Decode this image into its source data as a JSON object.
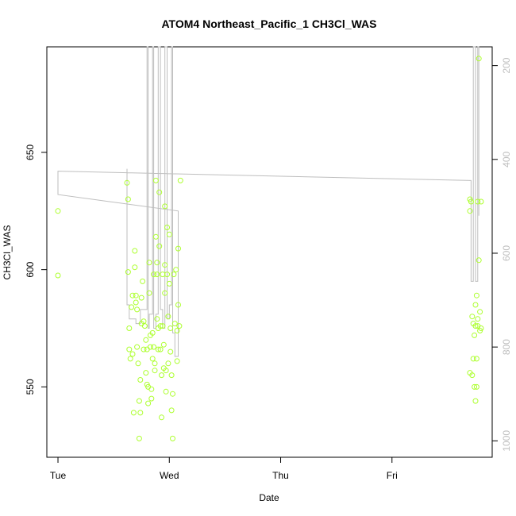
{
  "chart_data": {
    "type": "scatter",
    "title": "ATOM4 Northeast_Pacific_1 CH3Cl_WAS",
    "xlabel": "Date",
    "ylabel": "CH3Cl_WAS",
    "x_ticks": [
      "Tue",
      "Wed",
      "Thu",
      "Fri"
    ],
    "xlim": [
      -0.1,
      3.9
    ],
    "ylim": [
      520,
      695
    ],
    "y_ticks": [
      550,
      600,
      650
    ],
    "y2_ticks": [
      200,
      400,
      600,
      800,
      1000
    ],
    "y2lim": [
      1035,
      160
    ],
    "point_color": "#adff2f",
    "line_color": "#bebebe",
    "grid": false,
    "points": [
      [
        0.0,
        625
      ],
      [
        0.0,
        597.5
      ],
      [
        0.62,
        637
      ],
      [
        0.63,
        630
      ],
      [
        0.63,
        599
      ],
      [
        0.64,
        575
      ],
      [
        0.64,
        566
      ],
      [
        0.65,
        562
      ],
      [
        0.66,
        584
      ],
      [
        0.67,
        589
      ],
      [
        0.67,
        564
      ],
      [
        0.68,
        539
      ],
      [
        0.69,
        608
      ],
      [
        0.69,
        601
      ],
      [
        0.7,
        589
      ],
      [
        0.7,
        586
      ],
      [
        0.71,
        583
      ],
      [
        0.71,
        567
      ],
      [
        0.72,
        560
      ],
      [
        0.73,
        544
      ],
      [
        0.73,
        528
      ],
      [
        0.74,
        539
      ],
      [
        0.74,
        553
      ],
      [
        0.75,
        588
      ],
      [
        0.75,
        577
      ],
      [
        0.76,
        595
      ],
      [
        0.77,
        578
      ],
      [
        0.77,
        566
      ],
      [
        0.78,
        576
      ],
      [
        0.79,
        570
      ],
      [
        0.79,
        556
      ],
      [
        0.8,
        566
      ],
      [
        0.8,
        551
      ],
      [
        0.81,
        550
      ],
      [
        0.81,
        543
      ],
      [
        0.82,
        603
      ],
      [
        0.82,
        590
      ],
      [
        0.83,
        567
      ],
      [
        0.83,
        572
      ],
      [
        0.84,
        549
      ],
      [
        0.84,
        545
      ],
      [
        0.85,
        573
      ],
      [
        0.85,
        562
      ],
      [
        0.86,
        598
      ],
      [
        0.86,
        567
      ],
      [
        0.87,
        560
      ],
      [
        0.87,
        557
      ],
      [
        0.88,
        638
      ],
      [
        0.88,
        614
      ],
      [
        0.89,
        603
      ],
      [
        0.89,
        598
      ],
      [
        0.89,
        579
      ],
      [
        0.9,
        575
      ],
      [
        0.9,
        566
      ],
      [
        0.91,
        633
      ],
      [
        0.91,
        610
      ],
      [
        0.92,
        576
      ],
      [
        0.92,
        566
      ],
      [
        0.93,
        555
      ],
      [
        0.93,
        537
      ],
      [
        0.94,
        598
      ],
      [
        0.94,
        576
      ],
      [
        0.95,
        568
      ],
      [
        0.95,
        558
      ],
      [
        0.96,
        627
      ],
      [
        0.96,
        602
      ],
      [
        0.96,
        590
      ],
      [
        0.97,
        557
      ],
      [
        0.97,
        548
      ],
      [
        0.98,
        618
      ],
      [
        0.98,
        598
      ],
      [
        0.99,
        580
      ],
      [
        0.99,
        560
      ],
      [
        1.0,
        615
      ],
      [
        1.0,
        594
      ],
      [
        1.01,
        575
      ],
      [
        1.01,
        565
      ],
      [
        1.02,
        555
      ],
      [
        1.02,
        540
      ],
      [
        1.03,
        528
      ],
      [
        1.03,
        547
      ],
      [
        1.04,
        598
      ],
      [
        1.05,
        577
      ],
      [
        1.06,
        600
      ],
      [
        1.07,
        561
      ],
      [
        1.07,
        574
      ],
      [
        1.08,
        609
      ],
      [
        1.08,
        585
      ],
      [
        1.09,
        576
      ],
      [
        1.1,
        638
      ],
      [
        3.7,
        630
      ],
      [
        3.7,
        625
      ],
      [
        3.7,
        556
      ],
      [
        3.71,
        629
      ],
      [
        3.72,
        580
      ],
      [
        3.72,
        555
      ],
      [
        3.73,
        577
      ],
      [
        3.73,
        562
      ],
      [
        3.74,
        572
      ],
      [
        3.74,
        550
      ],
      [
        3.75,
        585
      ],
      [
        3.75,
        576
      ],
      [
        3.75,
        544
      ],
      [
        3.76,
        589
      ],
      [
        3.76,
        562
      ],
      [
        3.76,
        550
      ],
      [
        3.77,
        629
      ],
      [
        3.77,
        579
      ],
      [
        3.77,
        576
      ],
      [
        3.78,
        690
      ],
      [
        3.78,
        604
      ],
      [
        3.79,
        582
      ],
      [
        3.79,
        574
      ],
      [
        3.8,
        629
      ],
      [
        3.8,
        575
      ]
    ],
    "pressure_trace": [
      [
        0.62,
        420
      ],
      [
        0.62,
        710
      ],
      [
        0.64,
        710
      ],
      [
        0.64,
        740
      ],
      [
        0.7,
        740
      ],
      [
        0.7,
        750
      ],
      [
        0.74,
        750
      ],
      [
        0.74,
        720
      ],
      [
        0.8,
        720
      ],
      [
        0.8,
        160
      ],
      [
        0.81,
        160
      ],
      [
        0.81,
        760
      ],
      [
        0.82,
        760
      ],
      [
        0.82,
        730
      ],
      [
        0.85,
        730
      ],
      [
        0.85,
        160
      ],
      [
        0.86,
        160
      ],
      [
        0.86,
        760
      ],
      [
        0.88,
        760
      ],
      [
        0.88,
        730
      ],
      [
        0.9,
        730
      ],
      [
        0.9,
        160
      ],
      [
        0.92,
        160
      ],
      [
        0.92,
        720
      ],
      [
        0.94,
        720
      ],
      [
        0.94,
        760
      ],
      [
        0.96,
        760
      ],
      [
        0.96,
        160
      ],
      [
        0.98,
        160
      ],
      [
        0.98,
        740
      ],
      [
        1.0,
        740
      ],
      [
        1.0,
        710
      ],
      [
        1.02,
        710
      ],
      [
        1.02,
        160
      ],
      [
        1.03,
        160
      ],
      [
        1.03,
        770
      ],
      [
        1.05,
        770
      ],
      [
        1.05,
        820
      ],
      [
        1.08,
        820
      ],
      [
        1.08,
        510
      ],
      [
        0.0,
        475
      ],
      [
        0.0,
        425
      ],
      [
        3.71,
        445
      ],
      [
        3.71,
        660
      ],
      [
        3.73,
        660
      ],
      [
        3.73,
        160
      ],
      [
        3.75,
        160
      ],
      [
        3.75,
        660
      ],
      [
        3.77,
        660
      ],
      [
        3.77,
        160
      ],
      [
        3.78,
        160
      ],
      [
        3.78,
        520
      ]
    ]
  }
}
